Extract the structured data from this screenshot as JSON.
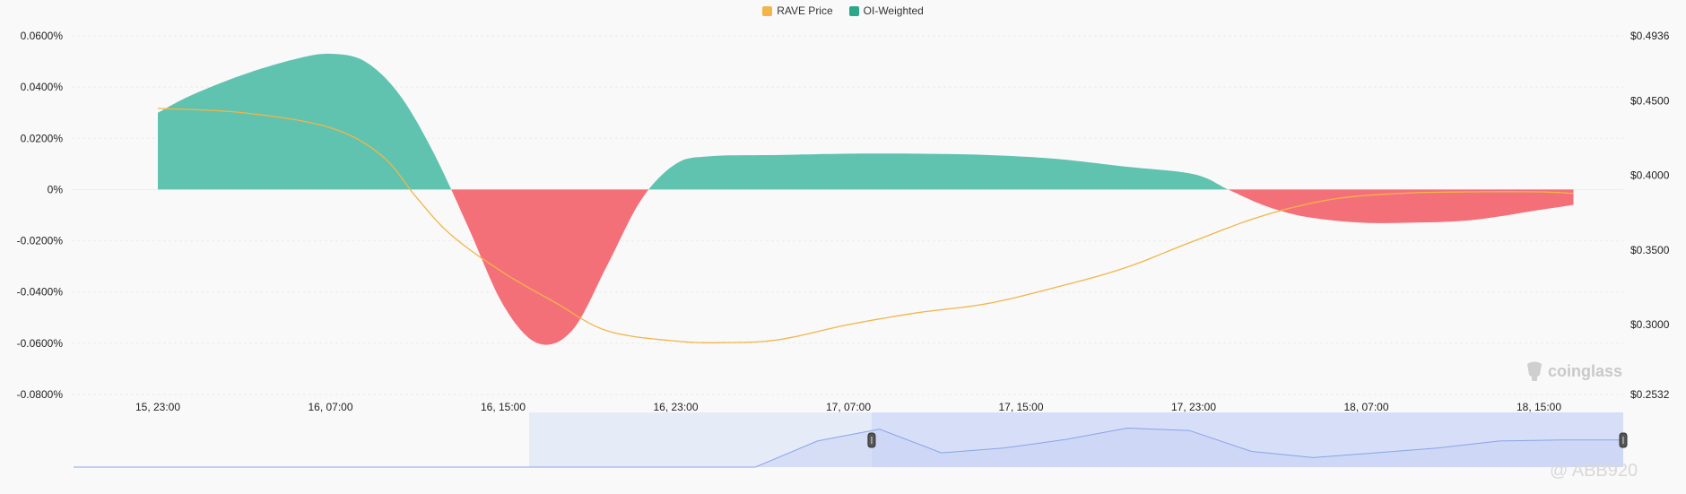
{
  "chart_data": {
    "type": "area",
    "legend": {
      "placement": "top-center",
      "items": [
        {
          "name": "RAVE Price",
          "color": "#f1b54a"
        },
        {
          "name": "OI-Weighted",
          "color": "#2aa889"
        }
      ]
    },
    "categories": [
      "15, 23:00",
      "16, 07:00",
      "16, 15:00",
      "16, 23:00",
      "17, 07:00",
      "17, 15:00",
      "17, 23:00",
      "18, 07:00",
      "18, 15:00"
    ],
    "y_left": {
      "ticks": [
        "0.0600%",
        "0.0400%",
        "0.0200%",
        "0%",
        "-0.0200%",
        "-0.0400%",
        "-0.0600%",
        "-0.0800%"
      ],
      "ylim": [
        -0.08,
        0.06
      ]
    },
    "y_right": {
      "ticks": [
        "$0.4936",
        "$0.4500",
        "$0.4000",
        "$0.3500",
        "$0.3000",
        "$0.2532"
      ],
      "ylim": [
        0.2532,
        0.4936
      ]
    },
    "series": [
      {
        "name": "OI-Weighted",
        "axis": "left",
        "positive_color": "#5fc3af",
        "negative_color": "#f47079",
        "x": [
          0,
          0.2,
          0.5,
          0.8,
          1.0,
          1.2,
          1.4,
          1.6,
          1.8,
          2.0,
          2.2,
          2.4,
          2.6,
          2.8,
          3.0,
          3.2,
          3.6,
          4.0,
          4.4,
          4.8,
          5.2,
          5.6,
          6.0,
          6.2,
          6.4,
          6.6,
          6.8,
          7.0,
          7.2,
          7.6,
          8.0,
          8.2
        ],
        "values": [
          0.03,
          0.037,
          0.045,
          0.051,
          0.053,
          0.05,
          0.037,
          0.014,
          -0.015,
          -0.045,
          -0.06,
          -0.055,
          -0.03,
          -0.004,
          0.01,
          0.013,
          0.0135,
          0.014,
          0.014,
          0.0135,
          0.012,
          0.009,
          0.006,
          0.0,
          -0.006,
          -0.01,
          -0.012,
          -0.013,
          -0.013,
          -0.012,
          -0.008,
          -0.006
        ]
      },
      {
        "name": "RAVE Price",
        "axis": "right",
        "color": "#f1b54a",
        "x": [
          0,
          0.5,
          1.0,
          1.3,
          1.5,
          1.7,
          2.0,
          2.3,
          2.6,
          3.0,
          3.3,
          3.6,
          4.0,
          4.4,
          4.8,
          5.2,
          5.6,
          6.0,
          6.4,
          6.8,
          7.2,
          7.6,
          8.0,
          8.2
        ],
        "values": [
          0.445,
          0.442,
          0.432,
          0.413,
          0.385,
          0.36,
          0.335,
          0.315,
          0.296,
          0.289,
          0.288,
          0.29,
          0.3,
          0.308,
          0.314,
          0.325,
          0.338,
          0.356,
          0.373,
          0.384,
          0.388,
          0.389,
          0.389,
          0.388
        ]
      }
    ],
    "navigator": {
      "values": [
        0,
        0,
        0,
        0,
        0,
        0,
        0,
        0,
        0,
        0,
        0,
        0,
        0.55,
        0.8,
        0.3,
        0.4,
        0.58,
        0.82,
        0.77,
        0.33,
        0.2,
        0.3,
        0.4,
        0.55,
        0.57,
        0.57
      ],
      "selection_start": 0.515,
      "selection_end": 1.0
    },
    "grid": "horizontal"
  },
  "watermark": {
    "brand": "coinglass",
    "user": "@ ABB920"
  }
}
